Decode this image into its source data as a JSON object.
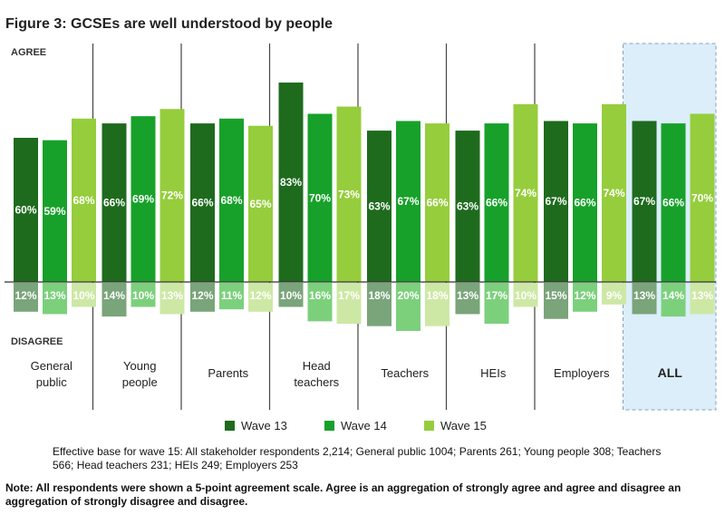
{
  "figure": {
    "title": "Figure 3: GCSEs are well understood by people",
    "base_note": "Effective base for wave 15: All stakeholder respondents 2,214; General public 1004; Parents 261; Young people 308; Teachers 566; Head teachers 231; HEIs 249; Employers 253",
    "footnote": "Note: All respondents were shown a 5-point agreement scale. Agree is an aggregation of strongly agree and agree and disagree an aggregation of strongly disagree and disagree."
  },
  "chart_data": {
    "type": "bar",
    "agree_label": "AGREE",
    "disagree_label": "DISAGREE",
    "categories": [
      [
        "General",
        "public"
      ],
      [
        "Young",
        "people"
      ],
      [
        "Parents"
      ],
      [
        "Head",
        "teachers"
      ],
      [
        "Teachers"
      ],
      [
        "HEIs"
      ],
      [
        "Employers"
      ],
      [
        "ALL"
      ]
    ],
    "highlight_category": 7,
    "series": [
      {
        "name": "Wave 13",
        "color": "#1e6b1e",
        "neg_color": "#7aa47a",
        "agree": [
          60,
          66,
          66,
          83,
          63,
          63,
          67,
          67
        ],
        "disagree": [
          12,
          14,
          12,
          10,
          18,
          13,
          15,
          13
        ]
      },
      {
        "name": "Wave 14",
        "color": "#17a12a",
        "neg_color": "#7cd07c",
        "agree": [
          59,
          69,
          68,
          70,
          67,
          66,
          66,
          66
        ],
        "disagree": [
          13,
          10,
          11,
          16,
          20,
          17,
          12,
          14
        ]
      },
      {
        "name": "Wave 15",
        "color": "#96cd3c",
        "neg_color": "#cde8a5",
        "agree": [
          68,
          72,
          65,
          73,
          66,
          74,
          74,
          70
        ],
        "disagree": [
          10,
          13,
          12,
          17,
          18,
          10,
          9,
          13
        ]
      }
    ],
    "value_suffix": "%"
  }
}
